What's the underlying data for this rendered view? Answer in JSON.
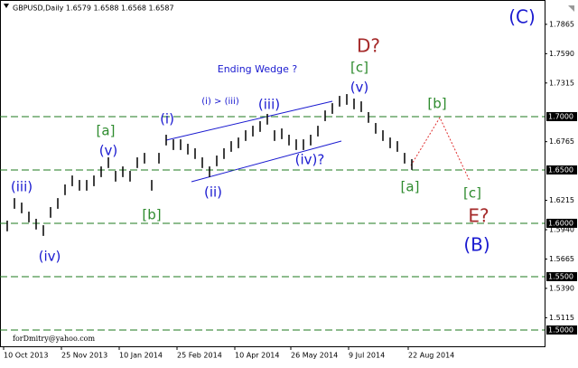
{
  "chart_data": {
    "type": "ohlc",
    "title": "GBPUSD,Daily  1.6579 1.6588 1.6568 1.6587",
    "footer": "forDmitry@yahoo.com",
    "color": "#000000",
    "x": [
      4,
      8,
      12,
      16,
      20,
      24,
      28,
      32,
      36,
      40,
      44,
      48,
      52,
      56,
      60,
      64,
      68,
      72,
      76,
      80,
      84,
      88,
      92,
      96,
      100,
      104,
      108,
      112,
      116,
      120,
      124,
      128,
      132,
      136,
      140,
      144,
      148,
      152,
      156,
      160,
      164,
      168,
      172,
      176,
      180,
      184,
      188,
      192,
      196,
      200,
      204,
      208,
      212,
      216,
      220,
      224,
      228
    ],
    "series": [
      {
        "name": "high",
        "values": [
          1.6025,
          1.6236,
          1.6194,
          1.6109,
          1.6042,
          1.5982,
          1.6152,
          1.6236,
          1.6364,
          1.6448,
          1.6406,
          1.6406,
          1.6448,
          1.6533,
          1.6618,
          1.6491,
          1.6533,
          1.6491,
          1.6618,
          1.666,
          1.6406,
          1.666,
          1.683,
          1.6787,
          1.6787,
          1.6745,
          1.6703,
          1.6618,
          1.6533,
          1.6635,
          1.6703,
          1.677,
          1.6804,
          1.6872,
          1.6914,
          1.6957,
          1.7025,
          1.6872,
          1.6889,
          1.683,
          1.6787,
          1.6787,
          1.683,
          1.6914,
          1.7058,
          1.7126,
          1.7194,
          1.7211,
          1.7169,
          1.7143,
          1.7042,
          1.694,
          1.6872,
          1.6804,
          1.677,
          1.666,
          1.6601
        ]
      },
      {
        "name": "low",
        "values": [
          1.5925,
          1.6136,
          1.6094,
          1.6009,
          1.5942,
          1.5882,
          1.6052,
          1.6136,
          1.6264,
          1.6348,
          1.6306,
          1.6306,
          1.6348,
          1.6433,
          1.6518,
          1.6391,
          1.6433,
          1.6391,
          1.6518,
          1.656,
          1.6306,
          1.656,
          1.673,
          1.6687,
          1.6687,
          1.6645,
          1.6603,
          1.6518,
          1.6433,
          1.6535,
          1.6603,
          1.667,
          1.6704,
          1.6772,
          1.6814,
          1.6857,
          1.6925,
          1.6772,
          1.6789,
          1.673,
          1.6687,
          1.6687,
          1.673,
          1.6814,
          1.6958,
          1.7026,
          1.7094,
          1.7111,
          1.7069,
          1.7043,
          1.6942,
          1.684,
          1.6772,
          1.6704,
          1.667,
          1.656,
          1.6501
        ]
      }
    ],
    "xlim": [
      0,
      301.5
    ],
    "xticks": [
      {
        "value": 2,
        "label": "10 Oct 2013"
      },
      {
        "value": 34,
        "label": "25 Nov 2013"
      },
      {
        "value": 66,
        "label": "10 Jan 2014"
      },
      {
        "value": 98,
        "label": "25 Feb 2014"
      },
      {
        "value": 130,
        "label": "10 Apr 2014"
      },
      {
        "value": 161,
        "label": "26 May 2014"
      },
      {
        "value": 193,
        "label": "9 Jul 2014"
      },
      {
        "value": 226,
        "label": "22 Aug 2014"
      }
    ],
    "ylim": [
      1.4847,
      1.8093
    ],
    "yticks": [
      1.7865,
      {
        "value": 1.759,
        "label": "1.7590"
      },
      1.7315,
      1.6765,
      1.6215,
      {
        "value": 1.594,
        "label": "1.5940"
      },
      1.5665,
      {
        "value": 1.539,
        "label": "1.5390"
      },
      1.5115
    ],
    "levels": [
      {
        "value": 1.7,
        "label": "1.7000"
      },
      {
        "value": 1.65,
        "label": "1.6500"
      },
      {
        "value": 1.6,
        "label": "1.6000"
      },
      {
        "value": 1.55,
        "label": "1.5500"
      },
      {
        "value": 1.5,
        "label": "1.5000"
      }
    ],
    "level_color": "#1e7a1e",
    "annotations": [
      {
        "text": "(C)",
        "color": "#1a1ad0"
      },
      {
        "text": "D?",
        "color": "#a52a2a"
      },
      {
        "text": "[c]",
        "color": "#2e8b2e"
      },
      {
        "text": "(v)",
        "color": "#1a1ad0"
      },
      {
        "text": "Ending Wedge ?",
        "color": "#1a1ad0"
      },
      {
        "text": "(i) > (iii)",
        "color": "#1a1ad0"
      },
      {
        "text": "(iii)",
        "color": "#1a1ad0"
      },
      {
        "text": "(i)",
        "color": "#1a1ad0"
      },
      {
        "text": "[a]",
        "color": "#2e8b2e"
      },
      {
        "text": "(v)",
        "color": "#1a1ad0"
      },
      {
        "text": "(iii)",
        "color": "#1a1ad0"
      },
      {
        "text": "(iv)",
        "color": "#1a1ad0"
      },
      {
        "text": "[b]",
        "color": "#2e8b2e"
      },
      {
        "text": "(ii)",
        "color": "#1a1ad0"
      },
      {
        "text": "(iv)?",
        "color": "#1a1ad0"
      },
      {
        "text": "[b]",
        "color": "#2e8b2e"
      },
      {
        "text": "[a]",
        "color": "#2e8b2e"
      },
      {
        "text": "[c]",
        "color": "#2e8b2e"
      },
      {
        "text": "E?",
        "color": "#a52a2a"
      },
      {
        "text": "(B)",
        "color": "#1a1ad0"
      }
    ]
  }
}
